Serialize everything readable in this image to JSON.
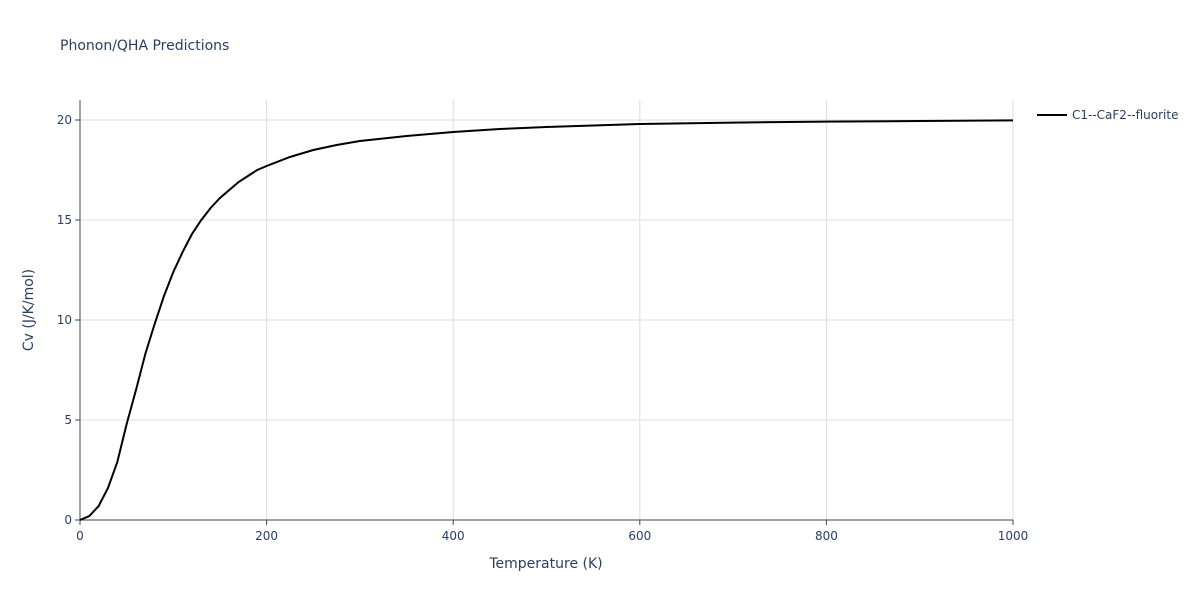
{
  "chart_data": {
    "type": "line",
    "title": "Phonon/QHA Predictions",
    "x_label": "Temperature (K)",
    "y_label": "Cv (J/K/mol)",
    "x": [
      0,
      10,
      20,
      30,
      40,
      50,
      60,
      70,
      80,
      90,
      100,
      110,
      120,
      130,
      140,
      150,
      160,
      170,
      180,
      190,
      200,
      225,
      250,
      275,
      300,
      350,
      400,
      450,
      500,
      600,
      700,
      800,
      900,
      1000
    ],
    "series": [
      {
        "name": "C1--CaF2--fluorite",
        "color": "#000000",
        "values": [
          0,
          0.2,
          0.7,
          1.6,
          2.9,
          4.8,
          6.5,
          8.3,
          9.8,
          11.2,
          12.4,
          13.4,
          14.3,
          15.0,
          15.6,
          16.1,
          16.5,
          16.9,
          17.2,
          17.5,
          17.7,
          18.15,
          18.5,
          18.75,
          18.95,
          19.2,
          19.4,
          19.55,
          19.65,
          19.8,
          19.87,
          19.92,
          19.95,
          19.98
        ]
      }
    ],
    "xlim": [
      0,
      1000
    ],
    "xticks": [
      0,
      200,
      400,
      600,
      800,
      1000
    ],
    "ylim": [
      0,
      21
    ],
    "yticks": [
      0,
      5,
      10,
      15,
      20
    ],
    "grid": true,
    "legend": "right"
  }
}
